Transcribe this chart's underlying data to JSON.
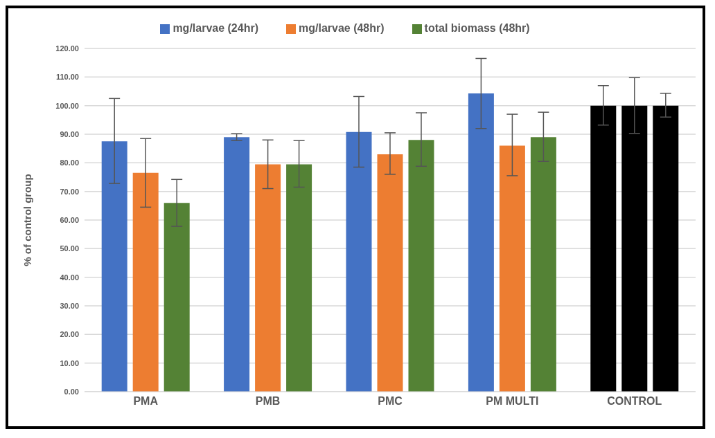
{
  "chart_data": {
    "type": "bar",
    "ylabel": "% of control group",
    "categories": [
      "PMA",
      "PMB",
      "PMC",
      "PM MULTI",
      "CONTROL"
    ],
    "series": [
      {
        "name": "mg/larvae (24hr)",
        "color": "#4472c4",
        "colors": [
          "#4472c4",
          "#4472c4",
          "#4472c4",
          "#4472c4",
          "#000000"
        ],
        "values": [
          87.5,
          89,
          90.8,
          104.3,
          100
        ],
        "errors": [
          [
            72.8,
            102.5
          ],
          [
            87.8,
            90.2
          ],
          [
            78.5,
            103.2
          ],
          [
            92,
            116.5
          ],
          [
            93.2,
            107
          ]
        ]
      },
      {
        "name": "mg/larvae (48hr)",
        "color": "#ed7d31",
        "colors": [
          "#ed7d31",
          "#ed7d31",
          "#ed7d31",
          "#ed7d31",
          "#000000"
        ],
        "values": [
          76.5,
          79.5,
          83,
          86,
          100
        ],
        "errors": [
          [
            64.5,
            88.5
          ],
          [
            71,
            88
          ],
          [
            76,
            90.5
          ],
          [
            75.5,
            97
          ],
          [
            90.3,
            109.8
          ]
        ]
      },
      {
        "name": "total biomass (48hr)",
        "color": "#548235",
        "colors": [
          "#548235",
          "#548235",
          "#548235",
          "#548235",
          "#000000"
        ],
        "values": [
          66,
          79.5,
          88,
          89,
          100
        ],
        "errors": [
          [
            57.8,
            74.2
          ],
          [
            71.5,
            87.8
          ],
          [
            78.8,
            97.5
          ],
          [
            80.5,
            97.7
          ],
          [
            96,
            104.3
          ]
        ]
      }
    ],
    "ylim": [
      0,
      120
    ],
    "yticks": [
      {
        "value": 0,
        "label": "0.00"
      },
      {
        "value": 10,
        "label": "10.00"
      },
      {
        "value": 20,
        "label": "20.00"
      },
      {
        "value": 30,
        "label": "30.00"
      },
      {
        "value": 40,
        "label": "40.00"
      },
      {
        "value": 50,
        "label": "50.00"
      },
      {
        "value": 60,
        "label": "60.00"
      },
      {
        "value": 70,
        "label": "70.00"
      },
      {
        "value": 80,
        "label": "80.00"
      },
      {
        "value": 90,
        "label": "90.00"
      },
      {
        "value": 100,
        "label": "100.00"
      },
      {
        "value": 110,
        "label": "110.00"
      },
      {
        "value": 120,
        "label": "120.00"
      }
    ],
    "grid": "y",
    "legend": "top"
  }
}
